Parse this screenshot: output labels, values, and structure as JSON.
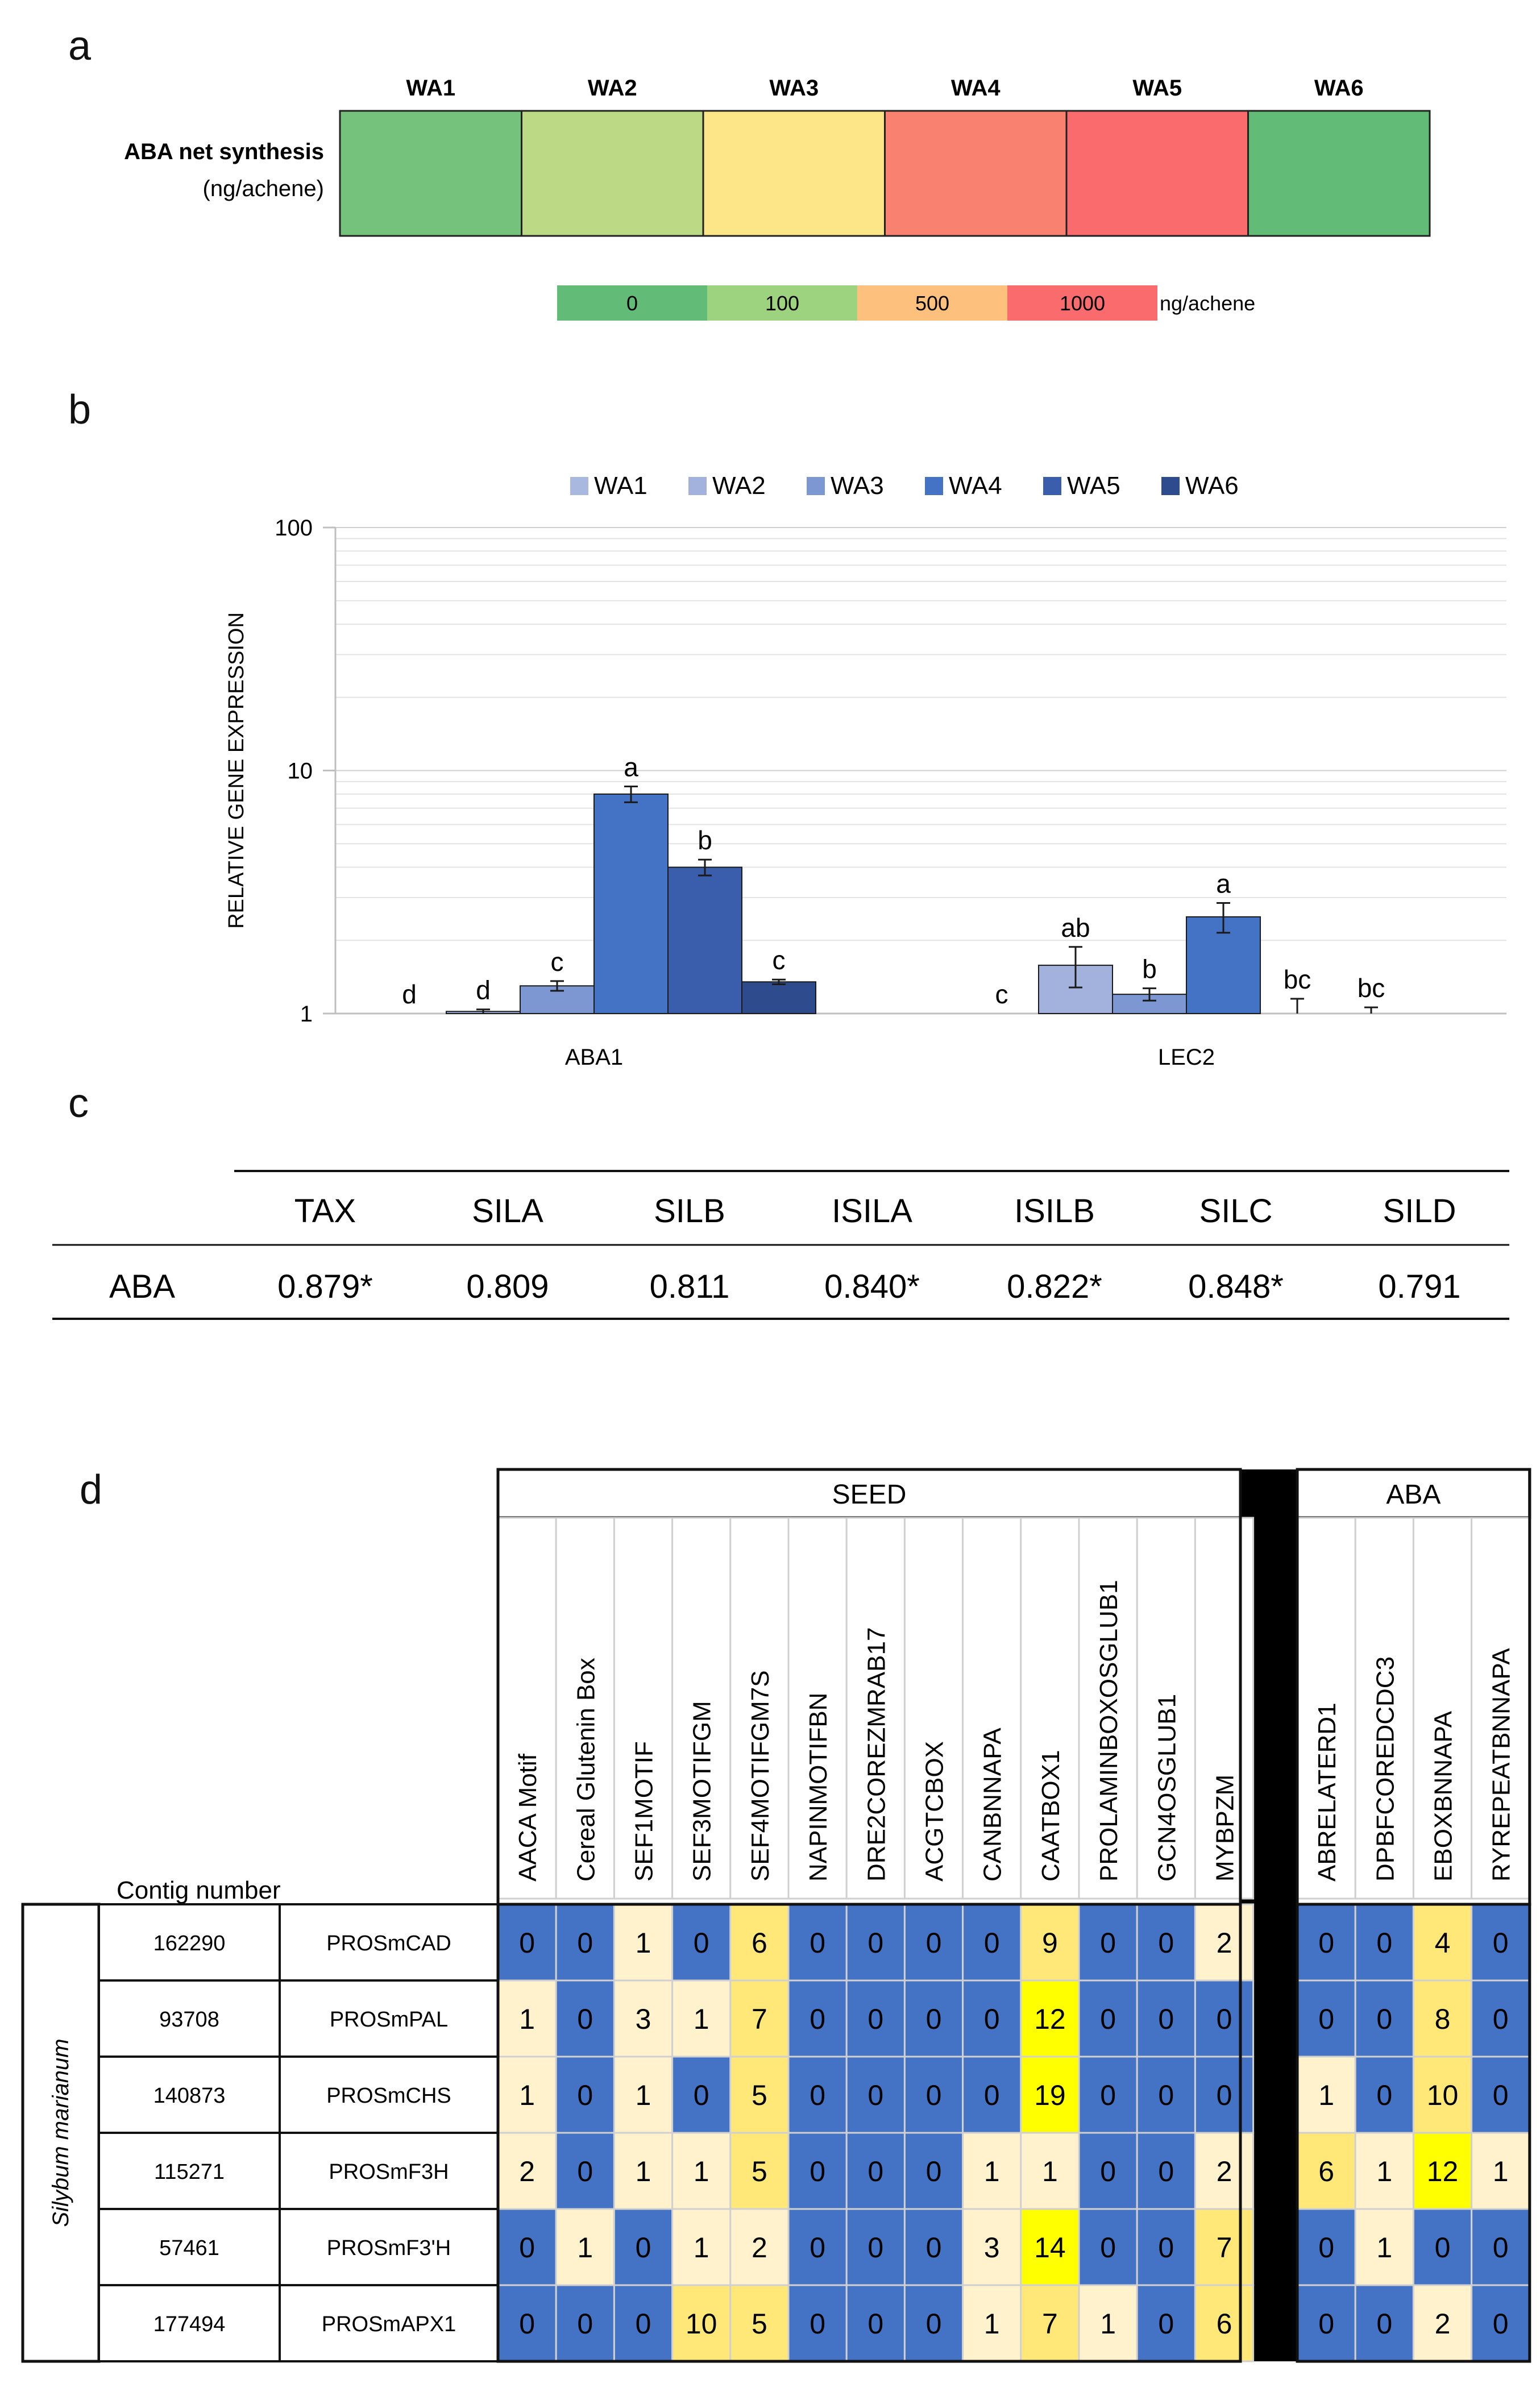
{
  "panel_a": {
    "letter": "a",
    "row_label": "ABA net synthesis",
    "row_unit": "(ng/achene)",
    "stages": [
      {
        "label": "WA1",
        "color": "#74c27c"
      },
      {
        "label": "WA2",
        "color": "#bcd986"
      },
      {
        "label": "WA3",
        "color": "#fde688"
      },
      {
        "label": "WA4",
        "color": "#f9816f"
      },
      {
        "label": "WA5",
        "color": "#f96b6d"
      },
      {
        "label": "WA6",
        "color": "#62bb76"
      }
    ],
    "scale": [
      {
        "label": "0",
        "color": "#62bb76"
      },
      {
        "label": "100",
        "color": "#9dd27f"
      },
      {
        "label": "500",
        "color": "#fdc07d"
      },
      {
        "label": "1000",
        "color": "#f96b6d"
      }
    ],
    "scale_unit": "ng/achene"
  },
  "panel_b": {
    "letter": "b",
    "chart_data": {
      "type": "bar",
      "scale": "log",
      "ylabel": "RELATIVE GENE EXPRESSION",
      "ylim": [
        1,
        100
      ],
      "yticks": [
        "1",
        "10",
        "100"
      ],
      "grid": true,
      "legend_position": "top",
      "categories": [
        "ABA1",
        "LEC2"
      ],
      "series": [
        {
          "name": "WA1",
          "color": "#a9b8de",
          "values": [
            1.0,
            1.0
          ],
          "err": [
            0,
            0
          ],
          "letters": [
            "d",
            "c"
          ]
        },
        {
          "name": "WA2",
          "color": "#a2b2dd",
          "values": [
            1.02,
            1.58
          ],
          "err": [
            0.02,
            0.3
          ],
          "letters": [
            "d",
            "ab"
          ]
        },
        {
          "name": "WA3",
          "color": "#7d97d2",
          "values": [
            1.3,
            1.2
          ],
          "err": [
            0.06,
            0.07
          ],
          "letters": [
            "c",
            "b"
          ]
        },
        {
          "name": "WA4",
          "color": "#4472c4",
          "values": [
            8.0,
            2.5
          ],
          "err": [
            0.6,
            0.35
          ],
          "letters": [
            "a",
            "a"
          ]
        },
        {
          "name": "WA5",
          "color": "#3a5eab",
          "values": [
            4.0,
            1.0
          ],
          "err": [
            0.3,
            0.15
          ],
          "letters": [
            "b",
            "bc"
          ]
        },
        {
          "name": "WA6",
          "color": "#2e4c8d",
          "values": [
            1.35,
            1.0
          ],
          "err": [
            0.03,
            0.06
          ],
          "letters": [
            "c",
            "bc"
          ]
        }
      ]
    }
  },
  "panel_c": {
    "letter": "c",
    "headers": [
      "",
      "TAX",
      "SILA",
      "SILB",
      "ISILA",
      "ISILB",
      "SILC",
      "SILD"
    ],
    "rows": [
      [
        "ABA",
        "0.879*",
        "0.809",
        "0.811",
        "0.840*",
        "0.822*",
        "0.848*",
        "0.791"
      ]
    ]
  },
  "panel_d": {
    "letter": "d",
    "species": "Silybum marianum",
    "contig_header": "Contig number",
    "group_seed": "SEED",
    "group_aba": "ABA",
    "seed_motifs": [
      "AACA Motif",
      "Cereal Glutenin Box",
      "SEF1MOTIF",
      "SEF3MOTIFGM",
      "SEF4MOTIFGM7S",
      "NAPINMOTIFBN",
      "DRE2COREZMRAB17",
      "ACGTCBOX",
      "CANBNNAPA",
      "CAATBOX1",
      "PROLAMINBOXOSGLUB1",
      "GCN4OSGLUB1",
      "MYBPZM"
    ],
    "aba_motifs": [
      "ABRELATERD1",
      "DPBFCOREDCDC3",
      "EBOXBNNAPA",
      "RYREPEATBNNAPA"
    ],
    "colors": {
      "zero": "#4472c4",
      "low": "#fff2cc",
      "mid": "#ffe878",
      "high": "#ffff00",
      "divider": "#000000"
    },
    "rows": [
      {
        "contig": "162290",
        "promoter": "PROSmCAD",
        "seed": [
          0,
          0,
          1,
          0,
          6,
          0,
          0,
          0,
          0,
          9,
          0,
          0,
          2
        ],
        "aba": [
          0,
          0,
          4,
          0
        ]
      },
      {
        "contig": "93708",
        "promoter": "PROSmPAL",
        "seed": [
          1,
          0,
          3,
          1,
          7,
          0,
          0,
          0,
          0,
          12,
          0,
          0,
          0
        ],
        "aba": [
          0,
          0,
          8,
          0
        ]
      },
      {
        "contig": "140873",
        "promoter": "PROSmCHS",
        "seed": [
          1,
          0,
          1,
          0,
          5,
          0,
          0,
          0,
          0,
          19,
          0,
          0,
          0
        ],
        "aba": [
          1,
          0,
          10,
          0
        ]
      },
      {
        "contig": "115271",
        "promoter": "PROSmF3H",
        "seed": [
          2,
          0,
          1,
          1,
          5,
          0,
          0,
          0,
          1,
          1,
          0,
          0,
          2
        ],
        "aba": [
          6,
          1,
          12,
          1
        ]
      },
      {
        "contig": "57461",
        "promoter": "PROSmF3'H",
        "seed": [
          0,
          1,
          0,
          1,
          2,
          0,
          0,
          0,
          3,
          14,
          0,
          0,
          7
        ],
        "aba": [
          0,
          1,
          0,
          0
        ]
      },
      {
        "contig": "177494",
        "promoter": "PROSmAPX1",
        "seed": [
          0,
          0,
          0,
          10,
          5,
          0,
          0,
          0,
          1,
          7,
          1,
          0,
          6
        ],
        "aba": [
          0,
          0,
          2,
          0
        ]
      }
    ]
  }
}
